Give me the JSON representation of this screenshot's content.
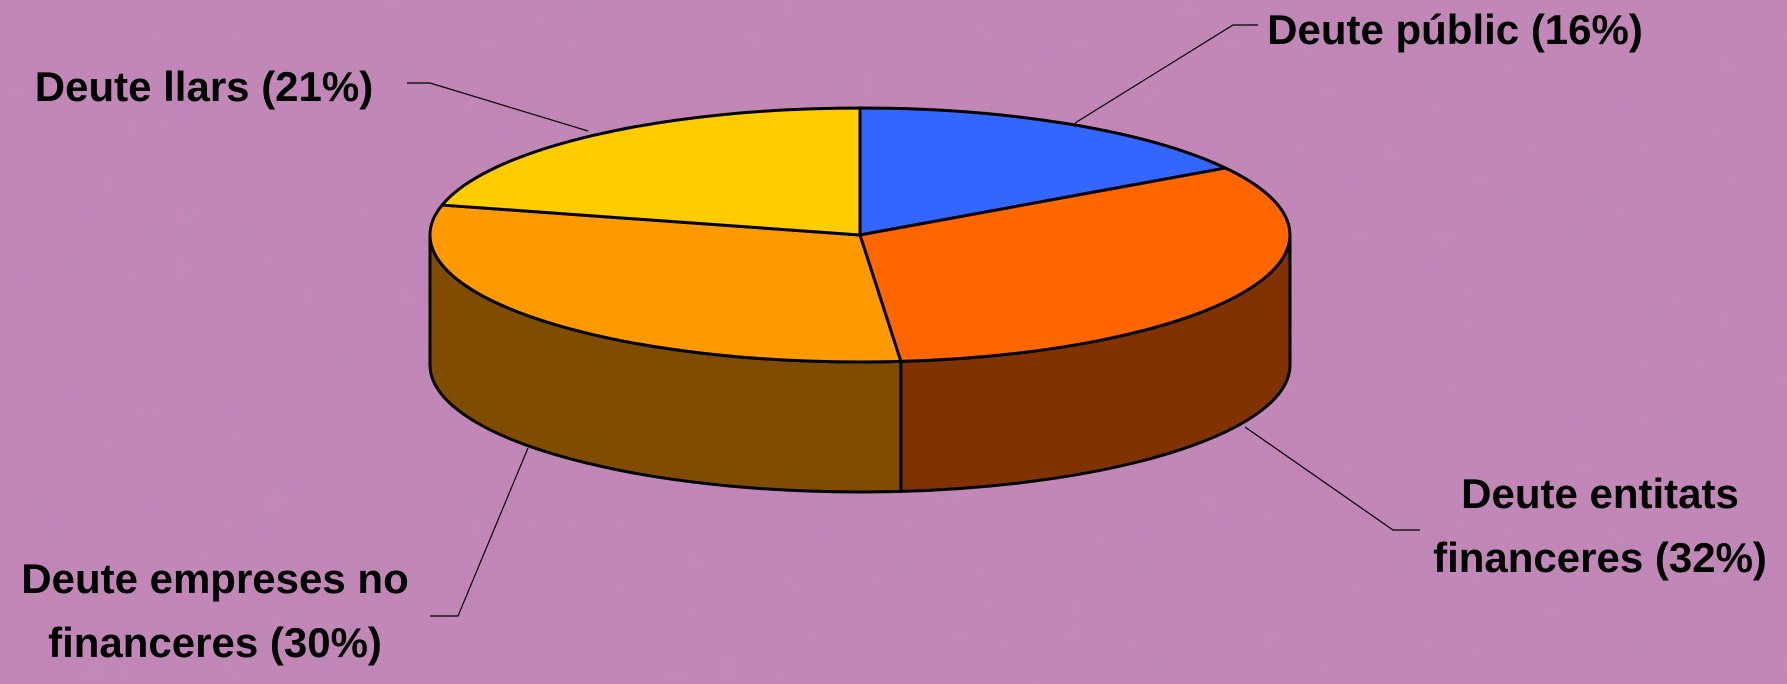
{
  "chart_data": {
    "type": "pie",
    "three_d": true,
    "title": "",
    "slices": [
      {
        "id": "public",
        "label_lines": [
          "Deute públic (16%)"
        ],
        "value": 16,
        "top_color": "#3366ff",
        "side_color": "#2a4bbf"
      },
      {
        "id": "financial",
        "label_lines": [
          "Deute entitats",
          "financeres (32%)"
        ],
        "value": 32,
        "top_color": "#ff6600",
        "side_color": "#803300"
      },
      {
        "id": "companies",
        "label_lines": [
          "Deute empreses no",
          "financeres (30%)"
        ],
        "value": 30,
        "top_color": "#ff9900",
        "side_color": "#7f4c00"
      },
      {
        "id": "households",
        "label_lines": [
          "Deute llars (21%)"
        ],
        "value": 21,
        "top_color": "#ffcc00",
        "side_color": "#806600"
      }
    ],
    "legend": "none",
    "background_color": "#c184b6"
  }
}
